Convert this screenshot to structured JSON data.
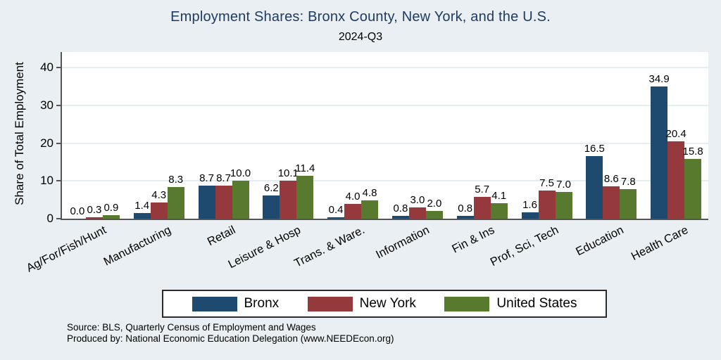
{
  "header": {
    "title": "Employment Shares: Bronx County, New York, and the U.S.",
    "subtitle": "2024-Q3",
    "title_color": "#1f3b63"
  },
  "chart_data": {
    "type": "bar",
    "title": "Employment Shares: Bronx County, New York, and the U.S.",
    "subtitle": "2024-Q3",
    "xlabel": "",
    "ylabel": "Share of Total Employment",
    "ylim": [
      0,
      44.1
    ],
    "yticks": [
      0,
      10,
      20,
      30,
      40
    ],
    "grid": true,
    "legend_position": "bottom",
    "plot_background": "#ffffff",
    "page_background": "#e9eff2",
    "gridline_color": "#e4eef1",
    "axis_color": "#555555",
    "categories": [
      "Ag/For/Fish/Hunt",
      "Manufacturing",
      "Retail",
      "Leisure & Hosp",
      "Trans. & Ware.",
      "Information",
      "Fin & Ins",
      "Prof, Sci, Tech",
      "Education",
      "Health Care"
    ],
    "series": [
      {
        "name": "Bronx",
        "color": "#1e4a70",
        "values": [
          0.0,
          1.4,
          8.7,
          6.2,
          0.4,
          0.8,
          0.8,
          1.6,
          16.5,
          34.9
        ]
      },
      {
        "name": "New York",
        "color": "#95393d",
        "values": [
          0.3,
          4.3,
          8.7,
          10.1,
          4.0,
          3.0,
          5.7,
          7.5,
          8.6,
          20.4
        ]
      },
      {
        "name": "United States",
        "color": "#577a2f",
        "values": [
          0.9,
          8.3,
          10.0,
          11.4,
          4.8,
          2.0,
          4.1,
          7.0,
          7.8,
          15.8
        ]
      }
    ]
  },
  "footer": {
    "source_line1": "Source: BLS, Quarterly Census of Employment and Wages",
    "source_line2": "Produced by: National Economic Education Delegation (www.NEEDEcon.org)"
  }
}
